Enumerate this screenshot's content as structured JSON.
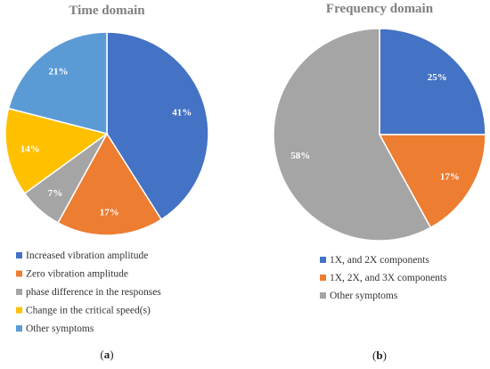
{
  "chart_data": [
    {
      "type": "pie",
      "title": "Time domain",
      "caption_open": "(",
      "caption_letter": "a",
      "caption_close": ")",
      "start_angle_deg": 0,
      "direction": "clockwise",
      "legend_placement": "bottom",
      "categories": [
        "Increased vibration amplitude",
        "Zero vibration amplitude",
        "phase difference in the responses",
        "Change in the critical speed(s)",
        "Other symptoms"
      ],
      "values": [
        41,
        17,
        7,
        14,
        21
      ],
      "labels": [
        "41%",
        "17%",
        "7%",
        "14%",
        "21%"
      ],
      "colors": [
        "#4472C4",
        "#ED7D31",
        "#A5A5A5",
        "#FFC000",
        "#5B9BD5"
      ]
    },
    {
      "type": "pie",
      "title": "Frequency domain",
      "caption_open": "(",
      "caption_letter": "b",
      "caption_close": ")",
      "start_angle_deg": 0,
      "direction": "clockwise",
      "legend_placement": "bottom",
      "categories": [
        "1X, and 2X components",
        "1X, 2X, and 3X components",
        "Other symptoms"
      ],
      "values": [
        25,
        17,
        58
      ],
      "labels": [
        "25%",
        "17%",
        "58%"
      ],
      "colors": [
        "#4472C4",
        "#ED7D31",
        "#A5A5A5"
      ]
    }
  ]
}
